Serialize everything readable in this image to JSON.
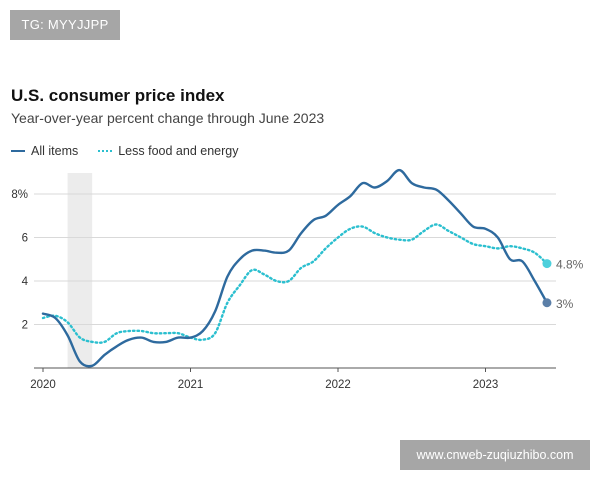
{
  "watermarks": {
    "top_left": "TG: MYYJJPP",
    "bottom_right": "www.cnweb-zuqiuzhibo.com"
  },
  "colors": {
    "all_items": "#2e6a9e",
    "core": "#2bbfcf",
    "recession": "#ececec",
    "grid": "#d9d9d9",
    "axis": "#555555",
    "end_dot_all": "#5b7fa8",
    "end_dot_core": "#4dd0dc"
  },
  "chart_data": {
    "type": "line",
    "title": "U.S. consumer price index",
    "subtitle": "Year-over-year percent change through June 2023",
    "xlabel": "",
    "ylabel": "",
    "x_start": "2020-01",
    "x_end": "2023-06",
    "x_unit": "month",
    "ylim": [
      0,
      8.5
    ],
    "grid": true,
    "y_ticks": [
      {
        "value": 2,
        "label": "2"
      },
      {
        "value": 4,
        "label": "4"
      },
      {
        "value": 6,
        "label": "6"
      },
      {
        "value": 8,
        "label": "8%"
      }
    ],
    "x_ticks": [
      {
        "year": 2020,
        "label": "2020"
      },
      {
        "year": 2021,
        "label": "2021"
      },
      {
        "year": 2022,
        "label": "2022"
      },
      {
        "year": 2023,
        "label": "2023"
      }
    ],
    "shaded_regions": [
      {
        "name": "recession",
        "start_month_index": 2,
        "end_month_index": 4
      }
    ],
    "legend_position": "top-left",
    "series": [
      {
        "name": "All items",
        "style": "solid",
        "values": [
          2.5,
          2.3,
          1.5,
          0.3,
          0.1,
          0.6,
          1.0,
          1.3,
          1.4,
          1.2,
          1.2,
          1.4,
          1.4,
          1.7,
          2.6,
          4.2,
          5.0,
          5.4,
          5.4,
          5.3,
          5.4,
          6.2,
          6.8,
          7.0,
          7.5,
          7.9,
          8.5,
          8.3,
          8.6,
          9.1,
          8.5,
          8.3,
          8.2,
          7.7,
          7.1,
          6.5,
          6.4,
          6.0,
          5.0,
          4.9,
          4.0,
          3.0
        ],
        "end_label": "3%"
      },
      {
        "name": "Less food and energy",
        "style": "dotted",
        "values": [
          2.3,
          2.4,
          2.1,
          1.4,
          1.2,
          1.2,
          1.6,
          1.7,
          1.7,
          1.6,
          1.6,
          1.6,
          1.4,
          1.3,
          1.6,
          3.0,
          3.8,
          4.5,
          4.3,
          4.0,
          4.0,
          4.6,
          4.9,
          5.5,
          6.0,
          6.4,
          6.5,
          6.2,
          6.0,
          5.9,
          5.9,
          6.3,
          6.6,
          6.3,
          6.0,
          5.7,
          5.6,
          5.5,
          5.6,
          5.5,
          5.3,
          4.8
        ],
        "end_label": "4.8%"
      }
    ]
  },
  "legend": {
    "all_items": "All items",
    "core": "Less food and energy"
  }
}
